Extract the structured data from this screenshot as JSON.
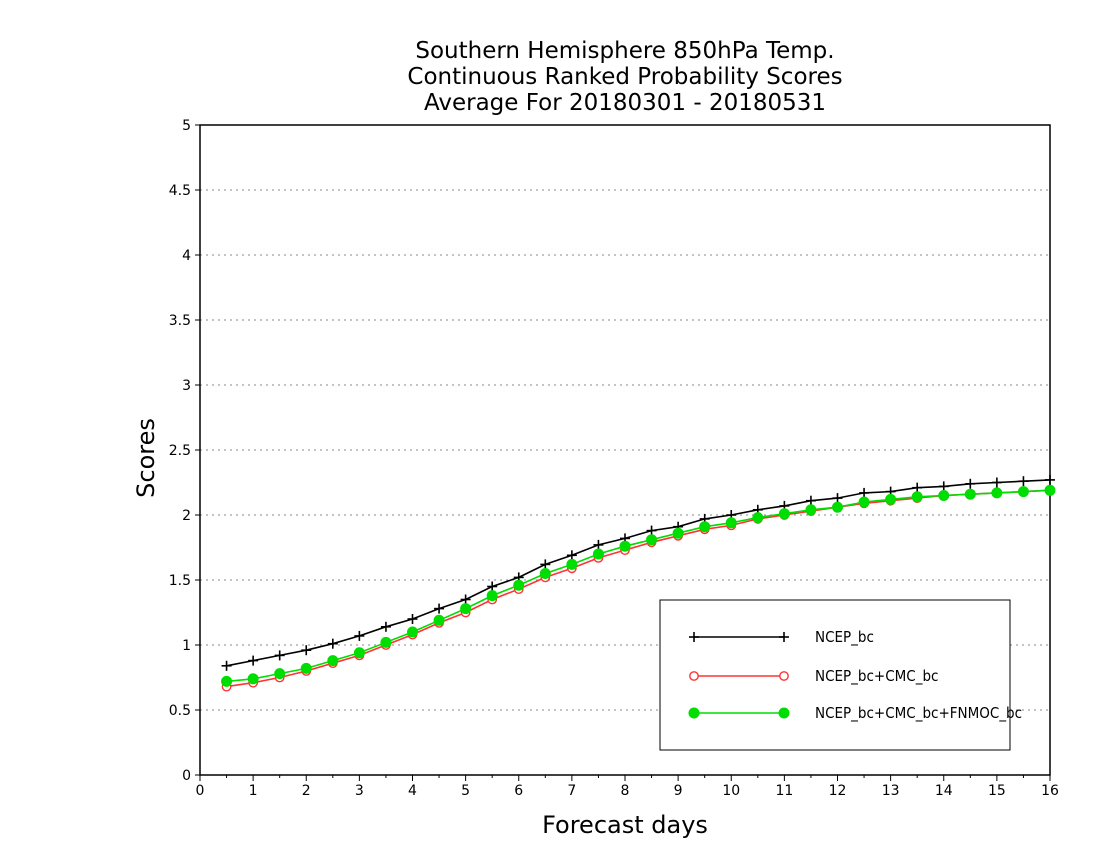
{
  "chart_data": {
    "type": "line",
    "title_lines": [
      "Southern Hemisphere 850hPa Temp.",
      "Continuous Ranked Probability Scores",
      "Average For 20180301 - 20180531"
    ],
    "xlabel": "Forecast days",
    "ylabel": "Scores",
    "xlim": [
      0,
      16
    ],
    "ylim": [
      0,
      5
    ],
    "xticks": [
      0,
      1,
      2,
      3,
      4,
      5,
      6,
      7,
      8,
      9,
      10,
      11,
      12,
      13,
      14,
      15,
      16
    ],
    "yticks": [
      0,
      0.5,
      1,
      1.5,
      2,
      2.5,
      3,
      3.5,
      4,
      4.5,
      5
    ],
    "ytick_labels": [
      "0",
      "0.5",
      "1",
      "1.5",
      "2",
      "2.5",
      "3",
      "3.5",
      "4",
      "4.5",
      "5"
    ],
    "grid": "horizontal dotted",
    "legend_position": "bottom-right",
    "x": [
      0.5,
      1.0,
      1.5,
      2.0,
      2.5,
      3.0,
      3.5,
      4.0,
      4.5,
      5.0,
      5.5,
      6.0,
      6.5,
      7.0,
      7.5,
      8.0,
      8.5,
      9.0,
      9.5,
      10.0,
      10.5,
      11.0,
      11.5,
      12.0,
      12.5,
      13.0,
      13.5,
      14.0,
      14.5,
      15.0,
      15.5,
      16.0
    ],
    "series": [
      {
        "name": "NCEP_bc",
        "color": "#000000",
        "marker": "plus",
        "values": [
          0.84,
          0.88,
          0.92,
          0.96,
          1.01,
          1.07,
          1.14,
          1.2,
          1.28,
          1.35,
          1.45,
          1.52,
          1.62,
          1.69,
          1.77,
          1.82,
          1.88,
          1.91,
          1.97,
          2.0,
          2.04,
          2.07,
          2.11,
          2.13,
          2.17,
          2.18,
          2.21,
          2.22,
          2.24,
          2.25,
          2.26,
          2.27
        ]
      },
      {
        "name": "NCEP_bc+CMC_bc",
        "color": "#ff3333",
        "marker": "open-circle",
        "values": [
          0.68,
          0.71,
          0.75,
          0.8,
          0.86,
          0.92,
          1.0,
          1.08,
          1.17,
          1.25,
          1.35,
          1.43,
          1.52,
          1.59,
          1.67,
          1.73,
          1.79,
          1.84,
          1.89,
          1.92,
          1.97,
          2.0,
          2.03,
          2.06,
          2.09,
          2.11,
          2.13,
          2.15,
          2.16,
          2.17,
          2.18,
          2.19
        ]
      },
      {
        "name": "NCEP_bc+CMC_bc+FNMOC_bc",
        "color": "#00dd00",
        "marker": "filled-circle",
        "values": [
          0.72,
          0.74,
          0.78,
          0.82,
          0.88,
          0.94,
          1.02,
          1.1,
          1.19,
          1.28,
          1.38,
          1.46,
          1.55,
          1.62,
          1.7,
          1.76,
          1.81,
          1.86,
          1.91,
          1.94,
          1.98,
          2.01,
          2.04,
          2.06,
          2.1,
          2.12,
          2.14,
          2.15,
          2.16,
          2.17,
          2.18,
          2.19
        ]
      }
    ]
  }
}
